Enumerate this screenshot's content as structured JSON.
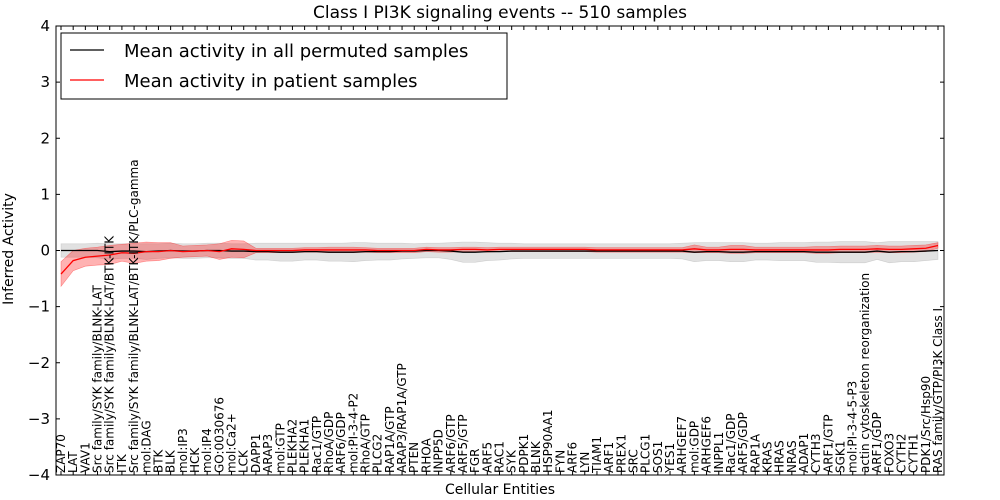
{
  "chart_data": {
    "type": "line",
    "title": "Class I PI3K signaling events -- 510 samples",
    "xlabel": "Cellular Entities",
    "ylabel": "Inferred Activity",
    "ylim": [
      -4,
      4
    ],
    "yticks": [
      -4,
      -3,
      -2,
      -1,
      0,
      1,
      2,
      3,
      4
    ],
    "ytick_labels": [
      "−4",
      "−3",
      "−2",
      "−1",
      "0",
      "1",
      "2",
      "3",
      "4"
    ],
    "legend_position": "top-left",
    "categories": [
      "ZAP70",
      "LAT",
      "VAV1",
      "Src family/SYK family/BLNK-LAT",
      "Src family/SYK family/BLNK-LAT/BTK-ITK",
      "ITK",
      "Src family/SYK family/BLNK-LAT/BTK-ITK/PLC-gamma",
      "mol:DAG",
      "BTK",
      "BLK",
      "mol:IP3",
      "HCK",
      "mol:IP4",
      "GO:0030676",
      "mol:Ca2+",
      "LCK",
      "DAPP1",
      "ARAP3",
      "mol:GTP",
      "PLEKHA2",
      "PLEKHA1",
      "Rac1/GTP",
      "RhoA/GDP",
      "ARF6/GDP",
      "mol:PI-3-4-P2",
      "RhoA/GTP",
      "PLCG2",
      "RAP1A/GTP",
      "ARAP3/RAP1A/GTP",
      "PTEN",
      "RHOA",
      "INPP5D",
      "ARF6/GTP",
      "ARF5/GTP",
      "FGR",
      "ARF5",
      "RAC1",
      "SYK",
      "PDPK1",
      "BLNK",
      "HSP90AA1",
      "FYN",
      "ARF6",
      "LYN",
      "TIAM1",
      "ARF1",
      "PREX1",
      "SRC",
      "PLCG1",
      "SOS1",
      "YES1",
      "ARHGEF7",
      "mol:GDP",
      "ARHGEF6",
      "INPPL1",
      "Rac1/GDP",
      "ARF5/GDP",
      "RAP1A",
      "KRAS",
      "HRAS",
      "NRAS",
      "ADAP1",
      "CYTH3",
      "ARF1/GTP",
      "SGK1",
      "mol:PI-3-4-5-P3",
      "actin cytoskeleton reorganization",
      "ARF1/GDP",
      "FOXO3",
      "CYTH2",
      "CYTH1",
      "PDK1/Src/Hsp90",
      "RAS family/GTP/PI3K Class I"
    ],
    "series": [
      {
        "name": "Mean activity in all permuted samples",
        "color": "#000000",
        "values": [
          0.0,
          0.0,
          0.0,
          0.0,
          -0.02,
          -0.01,
          -0.01,
          -0.02,
          -0.01,
          0.0,
          -0.01,
          -0.01,
          0.0,
          0.0,
          -0.01,
          -0.01,
          -0.02,
          -0.02,
          -0.03,
          -0.03,
          -0.02,
          -0.02,
          -0.03,
          -0.03,
          -0.03,
          -0.02,
          -0.02,
          -0.02,
          -0.01,
          -0.01,
          0.0,
          0.0,
          -0.01,
          -0.03,
          -0.03,
          -0.02,
          -0.02,
          -0.01,
          -0.01,
          -0.01,
          -0.01,
          -0.01,
          -0.01,
          -0.01,
          -0.01,
          -0.01,
          -0.01,
          -0.01,
          -0.01,
          -0.01,
          -0.01,
          -0.01,
          -0.03,
          -0.02,
          -0.02,
          -0.03,
          -0.03,
          -0.02,
          -0.02,
          -0.02,
          -0.02,
          -0.02,
          -0.03,
          -0.03,
          -0.03,
          -0.03,
          -0.03,
          -0.01,
          -0.03,
          -0.02,
          -0.02,
          -0.01,
          0.0
        ],
        "band": [
          0.12,
          0.12,
          0.12,
          0.13,
          0.14,
          0.13,
          0.13,
          0.14,
          0.13,
          0.13,
          0.13,
          0.13,
          0.13,
          0.13,
          0.13,
          0.13,
          0.15,
          0.15,
          0.16,
          0.16,
          0.15,
          0.15,
          0.16,
          0.16,
          0.17,
          0.16,
          0.15,
          0.15,
          0.14,
          0.13,
          0.13,
          0.13,
          0.15,
          0.18,
          0.18,
          0.16,
          0.15,
          0.14,
          0.13,
          0.13,
          0.13,
          0.13,
          0.13,
          0.13,
          0.13,
          0.13,
          0.13,
          0.13,
          0.13,
          0.13,
          0.13,
          0.14,
          0.17,
          0.16,
          0.16,
          0.17,
          0.17,
          0.15,
          0.15,
          0.16,
          0.16,
          0.16,
          0.18,
          0.18,
          0.19,
          0.19,
          0.19,
          0.15,
          0.19,
          0.18,
          0.18,
          0.17,
          0.16
        ]
      },
      {
        "name": "Mean activity in patient samples",
        "color": "#ff0000",
        "values": [
          -0.42,
          -0.18,
          -0.12,
          -0.1,
          -0.08,
          -0.04,
          -0.05,
          -0.02,
          -0.02,
          0.0,
          -0.02,
          -0.01,
          0.0,
          -0.02,
          0.03,
          0.02,
          0.0,
          0.0,
          0.0,
          0.0,
          0.01,
          0.01,
          0.01,
          0.01,
          0.01,
          0.01,
          0.0,
          0.0,
          0.0,
          0.0,
          0.02,
          0.01,
          0.01,
          0.02,
          0.02,
          0.01,
          0.02,
          0.02,
          0.02,
          0.02,
          0.02,
          0.02,
          0.02,
          0.02,
          0.01,
          0.01,
          0.01,
          0.01,
          0.01,
          0.01,
          0.01,
          0.01,
          0.03,
          0.01,
          0.01,
          0.02,
          0.02,
          0.01,
          0.01,
          0.01,
          0.01,
          0.01,
          0.01,
          0.01,
          0.02,
          0.02,
          0.02,
          0.03,
          0.02,
          0.02,
          0.03,
          0.04,
          0.09
        ],
        "band": [
          0.22,
          0.18,
          0.16,
          0.16,
          0.17,
          0.15,
          0.18,
          0.17,
          0.16,
          0.14,
          0.1,
          0.1,
          0.1,
          0.14,
          0.15,
          0.15,
          0.04,
          0.04,
          0.04,
          0.04,
          0.04,
          0.04,
          0.05,
          0.05,
          0.05,
          0.04,
          0.04,
          0.04,
          0.04,
          0.04,
          0.04,
          0.04,
          0.04,
          0.04,
          0.04,
          0.04,
          0.04,
          0.04,
          0.04,
          0.04,
          0.04,
          0.04,
          0.04,
          0.04,
          0.04,
          0.04,
          0.04,
          0.04,
          0.04,
          0.04,
          0.04,
          0.04,
          0.07,
          0.05,
          0.05,
          0.07,
          0.07,
          0.05,
          0.05,
          0.05,
          0.05,
          0.05,
          0.06,
          0.06,
          0.06,
          0.06,
          0.06,
          0.06,
          0.06,
          0.06,
          0.06,
          0.06,
          0.05
        ]
      }
    ]
  }
}
